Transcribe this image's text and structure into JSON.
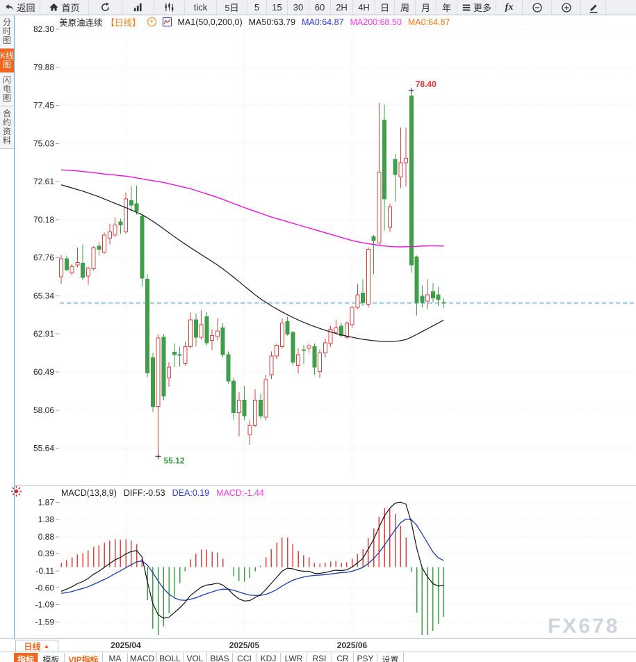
{
  "toolbar": {
    "items": [
      {
        "name": "back",
        "icon": "back-icon",
        "label": "返回"
      },
      {
        "name": "home",
        "icon": "home-icon",
        "label": "首页"
      },
      {
        "name": "refresh",
        "icon": "refresh-icon",
        "label": ""
      },
      {
        "name": "bar-chart-style",
        "icon": "bar-chart-icon",
        "label": ""
      },
      {
        "name": "kline-style",
        "icon": "kline-icon",
        "label": ""
      },
      {
        "name": "tick",
        "label": "tick"
      },
      {
        "name": "5d",
        "label": "5日"
      },
      {
        "name": "5min",
        "label": "5"
      },
      {
        "name": "15min",
        "label": "15"
      },
      {
        "name": "30min",
        "label": "30"
      },
      {
        "name": "60min",
        "label": "60"
      },
      {
        "name": "2h",
        "label": "2H"
      },
      {
        "name": "4h",
        "label": "4H"
      },
      {
        "name": "day",
        "label": "日"
      },
      {
        "name": "week",
        "label": "周"
      },
      {
        "name": "month",
        "label": "月"
      },
      {
        "name": "year",
        "label": "年"
      },
      {
        "name": "more",
        "icon": "menu-icon",
        "label": "更多"
      },
      {
        "name": "fx",
        "icon": "fx-icon",
        "label": "fx"
      },
      {
        "name": "zoom-out",
        "icon": "zoom-out-icon",
        "label": ""
      },
      {
        "name": "zoom-in",
        "icon": "zoom-in-icon",
        "label": ""
      },
      {
        "name": "draw",
        "icon": "pencil-icon",
        "label": ""
      }
    ]
  },
  "sidebar": {
    "items": [
      {
        "name": "time-chart",
        "label": "分时图",
        "selected": false
      },
      {
        "name": "kline-chart",
        "label": "K线图",
        "selected": true
      },
      {
        "name": "flash-chart",
        "label": "闪电图",
        "selected": false
      },
      {
        "name": "contract-info",
        "label": "合约资料",
        "selected": false
      }
    ]
  },
  "chart_header": {
    "symbol": "美原油连续",
    "period_tag": "【日线】",
    "ma_settings": "MA1(50,0,200,0)",
    "ma50_label": "MA50:63.79",
    "ma0_blue_label": "MA0:64.87",
    "ma200_label": "MA200:68.50",
    "ma0_orange_label": "MA0:64.87"
  },
  "macd_header": {
    "title": "MACD(13,8,9)",
    "diff_label": "DIFF:-0.53",
    "dea_label": "DEA:0.19",
    "macd_label": "MACD:-1.44"
  },
  "bottom": {
    "period_selector": "日线",
    "tabs": [
      {
        "name": "indicator",
        "label": "指标",
        "selected": true
      },
      {
        "name": "template",
        "label": "模板"
      },
      {
        "name": "vip-indicator",
        "label": "VIP指标",
        "accent": true
      },
      {
        "name": "ma",
        "label": "MA"
      },
      {
        "name": "macd",
        "label": "MACD"
      },
      {
        "name": "boll",
        "label": "BOLL"
      },
      {
        "name": "vol",
        "label": "VOL"
      },
      {
        "name": "bias",
        "label": "BIAS"
      },
      {
        "name": "cci",
        "label": "CCI"
      },
      {
        "name": "kdj",
        "label": "KDJ"
      },
      {
        "name": "lwr",
        "label": "LWR"
      },
      {
        "name": "rsi",
        "label": "RSI"
      },
      {
        "name": "cr",
        "label": "CR"
      },
      {
        "name": "psy",
        "label": "PSY"
      },
      {
        "name": "settings",
        "label": "设置"
      }
    ]
  },
  "watermark": "FX678",
  "colors": {
    "accent_orange": "#f2661d",
    "up_red": "#dd4140",
    "down_green": "#3f9e4a",
    "ma50_black": "#151515",
    "ma200_magenta": "#ee10dd",
    "diff_black": "#111111",
    "dea_blue": "#1b3daa",
    "current_price_line": "#2a9ad6",
    "grid": "#e3e7ee",
    "axis_text": "#222222",
    "annotation_high": "#e03030",
    "annotation_low": "#3a9a40"
  },
  "chart_data": {
    "type": "candlestick+macd",
    "symbol": "美原油连续",
    "period": "日线",
    "price_axis": [
      "82.30",
      "79.88",
      "77.45",
      "75.03",
      "72.61",
      "70.18",
      "67.76",
      "65.34",
      "62.91",
      "60.49",
      "58.06",
      "55.64"
    ],
    "macd_axis": [
      "1.87",
      "1.38",
      "0.88",
      "0.39",
      "-0.11",
      "-0.60",
      "-1.09",
      "-1.59"
    ],
    "current_price": 64.87,
    "high_annotation": {
      "label": "78.40",
      "value": 78.4,
      "index": 65
    },
    "low_annotation": {
      "label": "55.12",
      "value": 55.12,
      "index": 18
    },
    "month_ticks": [
      {
        "label": "2025/04",
        "index": 12
      },
      {
        "label": "2025/05",
        "index": 34
      },
      {
        "label": "2025/06",
        "index": 54
      }
    ],
    "candles": [
      [
        66.55,
        67.95,
        66.1,
        67.7
      ],
      [
        67.7,
        67.9,
        66.9,
        67.0
      ],
      [
        66.8,
        67.35,
        66.65,
        67.2
      ],
      [
        67.3,
        68.4,
        67.15,
        67.45
      ],
      [
        67.4,
        68.6,
        66.35,
        66.5
      ],
      [
        66.6,
        67.2,
        66.05,
        67.1
      ],
      [
        67.05,
        68.5,
        66.95,
        68.4
      ],
      [
        68.5,
        68.75,
        67.9,
        68.3
      ],
      [
        68.1,
        69.35,
        68.0,
        69.2
      ],
      [
        69.0,
        69.9,
        68.6,
        69.4
      ],
      [
        69.2,
        70.3,
        69.1,
        69.85
      ],
      [
        70.05,
        70.25,
        69.3,
        69.85
      ],
      [
        69.4,
        71.9,
        69.3,
        71.5
      ],
      [
        71.4,
        72.3,
        70.7,
        71.1
      ],
      [
        71.2,
        72.35,
        70.5,
        70.7
      ],
      [
        70.4,
        70.55,
        65.95,
        66.45
      ],
      [
        66.4,
        66.7,
        60.15,
        60.45
      ],
      [
        61.4,
        61.7,
        57.95,
        58.3
      ],
      [
        58.3,
        62.9,
        55.12,
        62.65
      ],
      [
        62.7,
        62.9,
        58.7,
        58.95
      ],
      [
        60.1,
        61.1,
        59.55,
        60.8
      ],
      [
        61.75,
        62.3,
        60.8,
        61.6
      ],
      [
        61.6,
        62.1,
        60.85,
        61.55
      ],
      [
        61.05,
        62.4,
        60.9,
        62.1
      ],
      [
        62.1,
        64.3,
        62.0,
        63.8
      ],
      [
        63.8,
        64.2,
        62.1,
        62.7
      ],
      [
        62.7,
        64.4,
        62.55,
        63.5
      ],
      [
        64.0,
        64.3,
        62.2,
        62.35
      ],
      [
        62.5,
        63.2,
        61.9,
        62.8
      ],
      [
        62.75,
        63.9,
        62.5,
        63.1
      ],
      [
        63.3,
        63.6,
        61.4,
        61.6
      ],
      [
        61.6,
        61.8,
        59.75,
        59.9
      ],
      [
        59.9,
        60.1,
        57.45,
        57.9
      ],
      [
        57.9,
        59.2,
        56.4,
        58.7
      ],
      [
        58.7,
        59.6,
        57.4,
        57.7
      ],
      [
        56.5,
        57.4,
        55.85,
        57.1
      ],
      [
        57.1,
        59.4,
        57.0,
        58.7
      ],
      [
        58.7,
        59.1,
        57.5,
        57.7
      ],
      [
        57.6,
        60.3,
        57.4,
        60.0
      ],
      [
        60.3,
        61.8,
        60.05,
        61.5
      ],
      [
        61.5,
        62.3,
        61.3,
        62.2
      ],
      [
        62.1,
        63.9,
        62.0,
        63.6
      ],
      [
        63.7,
        64.0,
        62.8,
        62.9
      ],
      [
        63.0,
        63.1,
        60.9,
        61.1
      ],
      [
        60.9,
        62.0,
        60.4,
        61.6
      ],
      [
        61.9,
        62.2,
        61.0,
        61.85
      ],
      [
        62.0,
        62.3,
        61.7,
        62.15
      ],
      [
        62.1,
        62.3,
        60.3,
        60.8
      ],
      [
        60.5,
        61.9,
        60.1,
        61.7
      ],
      [
        61.7,
        62.6,
        61.4,
        62.35
      ],
      [
        62.3,
        63.4,
        62.1,
        63.2
      ],
      [
        63.0,
        63.8,
        62.9,
        63.3
      ],
      [
        63.4,
        63.6,
        62.7,
        62.8
      ],
      [
        62.7,
        63.7,
        62.6,
        63.6
      ],
      [
        63.5,
        64.7,
        63.3,
        64.6
      ],
      [
        64.6,
        66.1,
        64.5,
        65.4
      ],
      [
        65.5,
        66.4,
        64.7,
        64.9
      ],
      [
        64.8,
        68.4,
        64.6,
        68.3
      ],
      [
        69.1,
        69.2,
        66.7,
        68.85
      ],
      [
        68.7,
        77.6,
        68.6,
        73.2
      ],
      [
        76.5,
        77.5,
        69.5,
        71.5
      ],
      [
        69.7,
        71.2,
        69.4,
        71.0
      ],
      [
        74.0,
        74.35,
        71.35,
        73.05
      ],
      [
        72.9,
        76.05,
        72.2,
        73.8
      ],
      [
        73.8,
        76.05,
        72.3,
        74.1
      ],
      [
        78.05,
        78.4,
        66.8,
        67.3
      ],
      [
        67.8,
        67.9,
        64.1,
        64.9
      ],
      [
        65.3,
        66.0,
        64.6,
        64.9
      ],
      [
        65.0,
        66.4,
        64.5,
        65.4
      ],
      [
        65.6,
        66.15,
        64.9,
        65.2
      ],
      [
        65.4,
        65.9,
        64.7,
        65.1
      ],
      [
        64.9,
        65.15,
        64.55,
        64.87
      ]
    ],
    "ma50": [
      72.4,
      72.3,
      72.2,
      72.1,
      72.0,
      71.88,
      71.76,
      71.64,
      71.5,
      71.36,
      71.22,
      71.08,
      70.94,
      70.8,
      70.65,
      70.5,
      70.3,
      70.08,
      69.85,
      69.6,
      69.35,
      69.1,
      68.86,
      68.63,
      68.4,
      68.18,
      67.96,
      67.74,
      67.52,
      67.3,
      67.05,
      66.8,
      66.52,
      66.24,
      65.96,
      65.68,
      65.4,
      65.15,
      64.92,
      64.7,
      64.5,
      64.31,
      64.13,
      63.96,
      63.8,
      63.65,
      63.51,
      63.38,
      63.26,
      63.15,
      63.04,
      62.94,
      62.85,
      62.77,
      62.7,
      62.63,
      62.57,
      62.52,
      62.48,
      62.45,
      62.43,
      62.42,
      62.44,
      62.48,
      62.55,
      62.7,
      62.88,
      63.06,
      63.24,
      63.42,
      63.6,
      63.79
    ],
    "ma200": [
      73.35,
      73.33,
      73.31,
      73.28,
      73.25,
      73.21,
      73.17,
      73.13,
      73.09,
      73.05,
      73.02,
      72.98,
      72.95,
      72.9,
      72.84,
      72.78,
      72.72,
      72.66,
      72.6,
      72.55,
      72.47,
      72.39,
      72.31,
      72.23,
      72.15,
      72.04,
      71.93,
      71.82,
      71.71,
      71.6,
      71.47,
      71.34,
      71.21,
      71.08,
      70.95,
      70.83,
      70.71,
      70.59,
      70.47,
      70.35,
      70.25,
      70.15,
      70.05,
      69.95,
      69.85,
      69.75,
      69.65,
      69.55,
      69.45,
      69.35,
      69.25,
      69.15,
      69.05,
      68.95,
      68.85,
      68.78,
      68.71,
      68.65,
      68.6,
      68.55,
      68.51,
      68.48,
      68.46,
      68.45,
      68.46,
      68.47,
      68.48,
      68.5,
      68.51,
      68.52,
      68.51,
      68.5
    ],
    "macd": {
      "diff": [
        -0.7,
        -0.64,
        -0.57,
        -0.48,
        -0.42,
        -0.33,
        -0.21,
        -0.12,
        -0.01,
        0.1,
        0.21,
        0.28,
        0.38,
        0.45,
        0.48,
        0.3,
        -0.42,
        -1.05,
        -1.38,
        -1.48,
        -1.45,
        -1.32,
        -1.18,
        -1.02,
        -0.82,
        -0.7,
        -0.58,
        -0.52,
        -0.5,
        -0.46,
        -0.52,
        -0.64,
        -0.8,
        -0.92,
        -0.98,
        -0.97,
        -0.88,
        -0.8,
        -0.65,
        -0.47,
        -0.3,
        -0.12,
        -0.03,
        -0.05,
        -0.1,
        -0.12,
        -0.12,
        -0.18,
        -0.18,
        -0.16,
        -0.12,
        -0.09,
        -0.1,
        -0.08,
        0.0,
        0.12,
        0.25,
        0.52,
        0.8,
        1.15,
        1.48,
        1.7,
        1.85,
        1.88,
        1.82,
        1.3,
        0.55,
        -0.02,
        -0.28,
        -0.48,
        -0.55,
        -0.53
      ],
      "dea": [
        -0.76,
        -0.74,
        -0.71,
        -0.66,
        -0.62,
        -0.57,
        -0.5,
        -0.43,
        -0.36,
        -0.28,
        -0.19,
        -0.11,
        -0.02,
        0.07,
        0.15,
        0.18,
        0.06,
        -0.16,
        -0.4,
        -0.62,
        -0.78,
        -0.89,
        -0.95,
        -0.96,
        -0.93,
        -0.89,
        -0.83,
        -0.77,
        -0.72,
        -0.67,
        -0.64,
        -0.64,
        -0.67,
        -0.72,
        -0.77,
        -0.81,
        -0.82,
        -0.82,
        -0.79,
        -0.73,
        -0.65,
        -0.55,
        -0.46,
        -0.38,
        -0.33,
        -0.29,
        -0.26,
        -0.24,
        -0.23,
        -0.22,
        -0.2,
        -0.18,
        -0.16,
        -0.15,
        -0.12,
        -0.07,
        -0.01,
        0.1,
        0.24,
        0.42,
        0.63,
        0.86,
        1.08,
        1.28,
        1.39,
        1.37,
        1.21,
        0.96,
        0.7,
        0.44,
        0.27,
        0.19
      ]
    }
  }
}
